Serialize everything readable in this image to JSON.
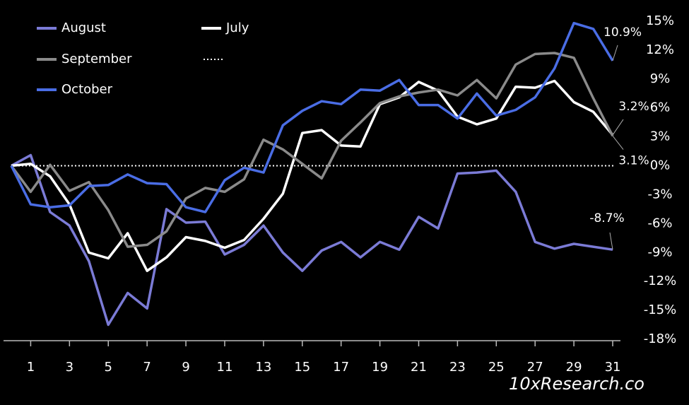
{
  "chart_data": {
    "type": "line",
    "x": [
      0,
      1,
      2,
      3,
      4,
      5,
      6,
      7,
      8,
      9,
      10,
      11,
      12,
      13,
      14,
      15,
      16,
      17,
      18,
      19,
      20,
      21,
      22,
      23,
      24,
      25,
      26,
      27,
      28,
      29,
      30,
      31
    ],
    "xlim": [
      -0.4,
      31.4
    ],
    "xticks": [
      1,
      3,
      5,
      7,
      9,
      11,
      13,
      15,
      17,
      19,
      21,
      23,
      25,
      27,
      29,
      31
    ],
    "ylim": [
      -18,
      15
    ],
    "yticks": [
      {
        "value": 15,
        "label": "15%"
      },
      {
        "value": 12,
        "label": "12%"
      },
      {
        "value": 9,
        "label": "9%"
      },
      {
        "value": 6,
        "label": "6%"
      },
      {
        "value": 3,
        "label": "3%"
      },
      {
        "value": 0,
        "label": "0%"
      },
      {
        "value": -3,
        "label": "-3%"
      },
      {
        "value": -6,
        "label": "-6%"
      },
      {
        "value": -9,
        "label": "-9%"
      },
      {
        "value": -12,
        "label": "-12%"
      },
      {
        "value": -15,
        "label": "-15%"
      },
      {
        "value": -18,
        "label": "-18%"
      }
    ],
    "zero_line": true,
    "series": [
      {
        "name": "August",
        "color": "#7b7bd6",
        "values": [
          0,
          1.1,
          -4.8,
          -6.2,
          -9.9,
          -16.5,
          -13.2,
          -14.8,
          -4.5,
          -5.9,
          -5.8,
          -9.2,
          -8.2,
          -6.2,
          -9.0,
          -10.9,
          -8.8,
          -7.9,
          -9.5,
          -7.9,
          -8.7,
          -5.3,
          -6.5,
          -0.8,
          -0.7,
          -0.5,
          -2.7,
          -7.9,
          -8.6,
          -8.1,
          -8.4,
          -8.7
        ],
        "value_labels": [
          null,
          null,
          null,
          null,
          null,
          null,
          null,
          null,
          null,
          null,
          null,
          null,
          null,
          null,
          null,
          null,
          null,
          null,
          null,
          null,
          null,
          null,
          null,
          null,
          null,
          null,
          null,
          null,
          null,
          null,
          null,
          "-8.7%"
        ]
      },
      {
        "name": "July",
        "color": "#ffffff",
        "values": [
          0,
          0.2,
          -1.1,
          -4.0,
          -9.0,
          -9.6,
          -7.0,
          -10.9,
          -9.5,
          -7.4,
          -7.8,
          -8.5,
          -7.7,
          -5.5,
          -2.9,
          3.4,
          3.7,
          2.1,
          2.0,
          6.4,
          7.1,
          8.7,
          7.8,
          5.1,
          4.3,
          4.9,
          8.2,
          8.1,
          8.8,
          6.6,
          5.6,
          3.2
        ],
        "value_labels": [
          null,
          null,
          null,
          null,
          null,
          null,
          null,
          null,
          null,
          null,
          null,
          null,
          null,
          null,
          null,
          null,
          null,
          null,
          null,
          null,
          null,
          null,
          null,
          null,
          null,
          null,
          null,
          null,
          null,
          null,
          null,
          "3.2%"
        ]
      },
      {
        "name": "September",
        "color": "#8a8a8a",
        "values": [
          0,
          -2.7,
          0.1,
          -2.6,
          -1.7,
          -4.6,
          -8.4,
          -8.2,
          -6.8,
          -3.4,
          -2.3,
          -2.7,
          -1.4,
          2.7,
          1.7,
          0.2,
          -1.3,
          2.6,
          4.5,
          6.5,
          7.2,
          7.6,
          7.9,
          7.3,
          8.9,
          7.0,
          10.5,
          11.6,
          11.7,
          11.2,
          7.0,
          3.1
        ],
        "value_labels": [
          null,
          null,
          null,
          null,
          null,
          null,
          null,
          null,
          null,
          null,
          null,
          null,
          null,
          null,
          null,
          null,
          null,
          null,
          null,
          null,
          null,
          null,
          null,
          null,
          null,
          null,
          null,
          null,
          null,
          null,
          null,
          "3.1%"
        ]
      },
      {
        "name": "October",
        "color": "#4a6de5",
        "values": [
          0,
          -4.0,
          -4.3,
          -4.1,
          -2.1,
          -2.0,
          -0.9,
          -1.8,
          -1.9,
          -4.3,
          -4.8,
          -1.5,
          -0.2,
          -0.7,
          4.2,
          5.7,
          6.7,
          6.4,
          7.9,
          7.8,
          8.9,
          6.3,
          6.3,
          4.9,
          7.5,
          5.2,
          5.8,
          7.1,
          10.1,
          14.8,
          14.2,
          10.9
        ],
        "value_labels": [
          null,
          null,
          null,
          null,
          null,
          null,
          null,
          null,
          null,
          null,
          null,
          null,
          null,
          null,
          null,
          null,
          null,
          null,
          null,
          null,
          null,
          null,
          null,
          null,
          null,
          null,
          null,
          null,
          null,
          null,
          null,
          "10.9%"
        ]
      }
    ],
    "watermark": "10xResearch.co"
  }
}
